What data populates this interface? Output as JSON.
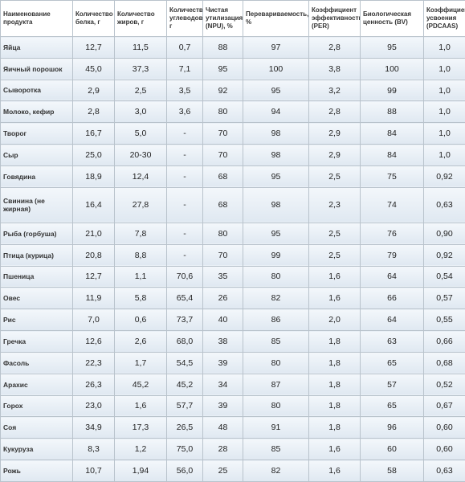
{
  "table": {
    "header": [
      "Наименование продукта",
      "Количество белка, г",
      "Количество жиров, г",
      "Количество углеводов, г",
      "Чистая утилизация (NPU), %",
      "Перевариваемость, %",
      "Коэффициент эффективности (PER)",
      "Биологическая ценность (BV)",
      "Коэффициент усвоения (PDCAAS)"
    ],
    "rows": [
      [
        "Яйца",
        "12,7",
        "11,5",
        "0,7",
        "88",
        "97",
        "2,8",
        "95",
        "1,0"
      ],
      [
        "Яичный порошок",
        "45,0",
        "37,3",
        "7,1",
        "95",
        "100",
        "3,8",
        "100",
        "1,0"
      ],
      [
        "Сыворотка",
        "2,9",
        "2,5",
        "3,5",
        "92",
        "95",
        "3,2",
        "99",
        "1,0"
      ],
      [
        "Молоко, кефир",
        "2,8",
        "3,0",
        "3,6",
        "80",
        "94",
        "2,8",
        "88",
        "1,0"
      ],
      [
        "Творог",
        "16,7",
        "5,0",
        "-",
        "70",
        "98",
        "2,9",
        "84",
        "1,0"
      ],
      [
        "Сыр",
        "25,0",
        "20-30",
        "-",
        "70",
        "98",
        "2,9",
        "84",
        "1,0"
      ],
      [
        "Говядина",
        "18,9",
        "12,4",
        "-",
        "68",
        "95",
        "2,5",
        "75",
        "0,92"
      ],
      [
        "Свинина (не жирная)",
        "16,4",
        "27,8",
        "-",
        "68",
        "98",
        "2,3",
        "74",
        "0,63"
      ],
      [
        "Рыба (горбуша)",
        "21,0",
        "7,8",
        "-",
        "80",
        "95",
        "2,5",
        "76",
        "0,90"
      ],
      [
        "Птица (курица)",
        "20,8",
        "8,8",
        "-",
        "70",
        "99",
        "2,5",
        "79",
        "0,92"
      ],
      [
        "Пшеница",
        "12,7",
        "1,1",
        "70,6",
        "35",
        "80",
        "1,6",
        "64",
        "0,54"
      ],
      [
        "Овес",
        "11,9",
        "5,8",
        "65,4",
        "26",
        "82",
        "1,6",
        "66",
        "0,57"
      ],
      [
        "Рис",
        "7,0",
        "0,6",
        "73,7",
        "40",
        "86",
        "2,0",
        "64",
        "0,55"
      ],
      [
        "Гречка",
        "12,6",
        "2,6",
        "68,0",
        "38",
        "85",
        "1,8",
        "63",
        "0,66"
      ],
      [
        "Фасоль",
        "22,3",
        "1,7",
        "54,5",
        "39",
        "80",
        "1,8",
        "65",
        "0,68"
      ],
      [
        "Арахис",
        "26,3",
        "45,2",
        "45,2",
        "34",
        "87",
        "1,8",
        "57",
        "0,52"
      ],
      [
        "Горох",
        "23,0",
        "1,6",
        "57,7",
        "39",
        "80",
        "1,8",
        "65",
        "0,67"
      ],
      [
        "Соя",
        "34,9",
        "17,3",
        "26,5",
        "48",
        "91",
        "1,8",
        "96",
        "0,60"
      ],
      [
        "Кукуруза",
        "8,3",
        "1,2",
        "75,0",
        "28",
        "85",
        "1,6",
        "60",
        "0,60"
      ],
      [
        "Рожь",
        "10,7",
        "1,94",
        "56,0",
        "25",
        "82",
        "1,6",
        "58",
        "0,63"
      ]
    ]
  }
}
